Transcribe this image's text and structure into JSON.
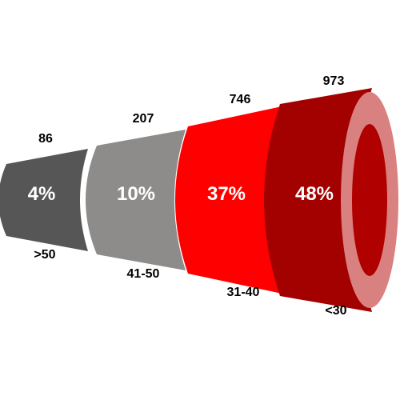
{
  "chart_data": {
    "type": "funnel",
    "title": "",
    "categories": [
      ">50",
      "41-50",
      "31-40",
      "<30"
    ],
    "values": [
      86,
      207,
      746,
      973
    ],
    "percent_labels": [
      "4%",
      "10%",
      "37%",
      "48%"
    ],
    "colors": [
      "#565656",
      "#8e8c8a",
      "#ff0000",
      "#a30000"
    ],
    "end_cap_colors": {
      "rim": "#d98080",
      "inner": "#b00000"
    },
    "legend": "none",
    "grid": false
  }
}
